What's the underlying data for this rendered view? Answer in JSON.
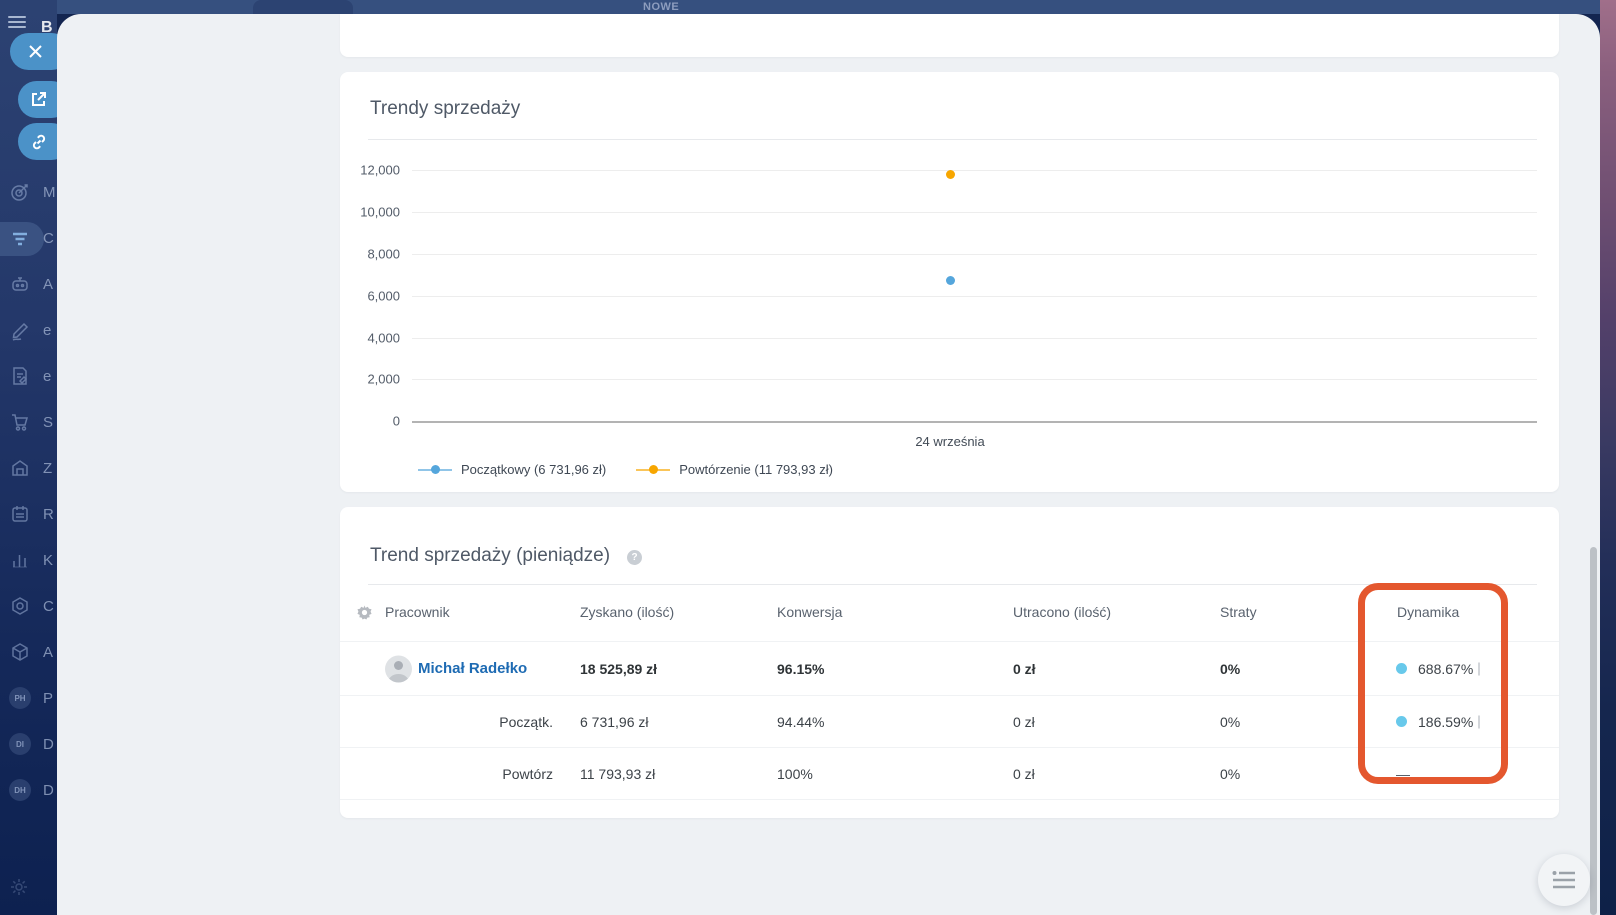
{
  "app": {
    "topbar": {
      "nowe_label": "NOWE"
    },
    "sidebar": {
      "logo_fragment": "B",
      "items": [
        {
          "icon": "target-icon",
          "label_fragment": "M"
        },
        {
          "icon": "funnel-icon",
          "label_fragment": "C",
          "active": true
        },
        {
          "icon": "robot-icon",
          "label_fragment": "A"
        },
        {
          "icon": "pencil-icon",
          "label_fragment": "e"
        },
        {
          "icon": "document-icon",
          "label_fragment": "e"
        },
        {
          "icon": "cart-icon",
          "label_fragment": "S"
        },
        {
          "icon": "store-icon",
          "label_fragment": "Z"
        },
        {
          "icon": "booking-icon",
          "label_fragment": "R"
        },
        {
          "icon": "barchart-icon",
          "label_fragment": "K"
        },
        {
          "icon": "hexagon-icon",
          "label_fragment": "C"
        },
        {
          "icon": "cube-icon",
          "label_fragment": "A"
        },
        {
          "avatar": "PH",
          "label_fragment": "P"
        },
        {
          "avatar": "DI",
          "label_fragment": "D"
        },
        {
          "avatar": "DH",
          "label_fragment": "D"
        }
      ]
    }
  },
  "chart_data": {
    "type": "line",
    "title": "Trendy sprzedaży",
    "x": [
      "24 września"
    ],
    "series": [
      {
        "name": "Początkowy (6 731,96 zł)",
        "color": "#55a6dc",
        "values": [
          6731.96
        ]
      },
      {
        "name": "Powtórzenie (11 793,93 zł)",
        "color": "#f7a600",
        "values": [
          11793.93
        ]
      }
    ],
    "ylim": [
      0,
      12000
    ],
    "yticks": [
      12000,
      10000,
      8000,
      6000,
      4000,
      2000,
      0
    ],
    "ytick_labels": [
      "12,000",
      "10,000",
      "8,000",
      "6,000",
      "4,000",
      "2,000",
      "0"
    ],
    "grid": true,
    "legend_position": "bottom"
  },
  "table_card": {
    "title": "Trend sprzedaży (pieniądze)",
    "help_icon": "?",
    "columns": [
      "Pracownik",
      "Zyskano (ilość)",
      "Konwersja",
      "Utracono (ilość)",
      "Straty",
      "Dynamika"
    ],
    "rows": [
      {
        "employee": "Michał Radełko",
        "zyskano": "18 525,89 zł",
        "konwersja": "96.15%",
        "utracono": "0 zł",
        "straty": "0%",
        "dynamika": "688.67%"
      },
      {
        "employee": "Początk.",
        "zyskano": "6 731,96 zł",
        "konwersja": "94.44%",
        "utracono": "0 zł",
        "straty": "0%",
        "dynamika": "186.59%"
      },
      {
        "employee": "Powtórz",
        "zyskano": "11 793,93 zł",
        "konwersja": "100%",
        "utracono": "0 zł",
        "straty": "0%",
        "dynamika": "—"
      }
    ],
    "highlight_color": "#e4572e",
    "dot_color": "#68c9eb"
  }
}
